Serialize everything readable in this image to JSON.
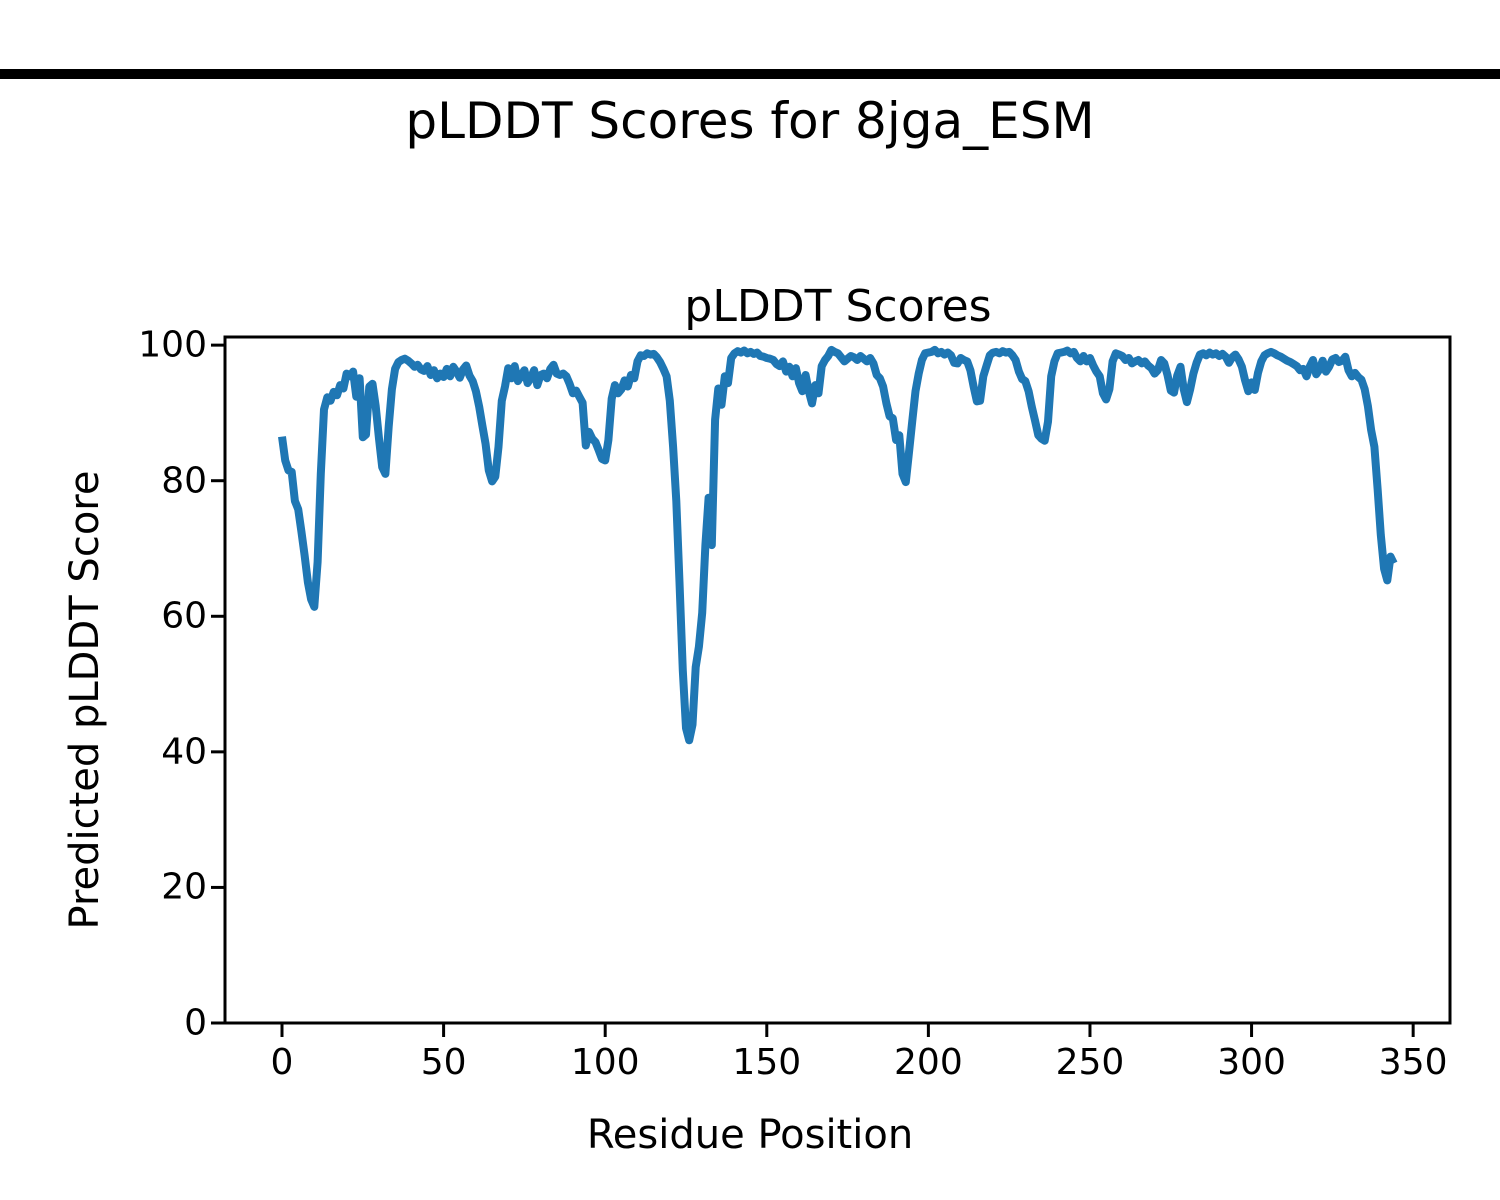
{
  "figure": {
    "suptitle": "pLDDT Scores for 8jga_ESM",
    "background_color": "#ffffff",
    "top_rule_color": "#000000"
  },
  "chart_data": {
    "type": "line",
    "title": "pLDDT Scores",
    "suptitle": "pLDDT Scores for 8jga_ESM",
    "xlabel": "Residue Position",
    "ylabel": "Predicted pLDDT Score",
    "xticks": [
      0,
      50,
      100,
      150,
      200,
      250,
      300,
      350
    ],
    "yticks": [
      0,
      20,
      40,
      60,
      80,
      100
    ],
    "xlim": [
      -17.64,
      361.4
    ],
    "ylim": [
      0,
      101.2
    ],
    "grid": false,
    "legend": "none",
    "line_color": "#1f77b4",
    "axis_color": "#000000",
    "series": [
      {
        "name": "pLDDT",
        "x_description": "residue index, 0 to 344 step 1",
        "x_start": 0,
        "x_step": 1,
        "n_points": 345,
        "values": [
          86.5,
          83.0,
          81.5,
          81.3,
          77.0,
          75.8,
          72.5,
          69.0,
          65.0,
          62.5,
          61.4,
          68.0,
          81.0,
          90.5,
          92.3,
          91.8,
          93.1,
          92.6,
          94.1,
          93.6,
          95.8,
          95.4,
          96.1,
          92.4,
          95.1,
          86.4,
          86.8,
          93.9,
          94.3,
          91.0,
          86.2,
          82.0,
          81.0,
          88.0,
          93.5,
          96.5,
          97.5,
          97.8,
          98.0,
          97.7,
          97.3,
          96.8,
          97.1,
          96.4,
          96.2,
          96.9,
          95.6,
          96.3,
          95.1,
          95.8,
          95.3,
          96.5,
          95.4,
          96.8,
          96.1,
          95.2,
          96.4,
          97.0,
          95.5,
          94.7,
          93.2,
          90.9,
          88.1,
          85.4,
          81.5,
          79.9,
          80.6,
          85.0,
          91.8,
          93.9,
          96.6,
          95.1,
          96.9,
          94.7,
          95.5,
          96.3,
          94.4,
          95.2,
          96.3,
          94.1,
          95.6,
          95.8,
          95.1,
          96.5,
          97.1,
          95.8,
          95.6,
          95.8,
          95.4,
          94.3,
          92.9,
          93.3,
          92.4,
          91.5,
          85.2,
          87.2,
          86.2,
          85.7,
          84.5,
          83.2,
          83.0,
          86.0,
          92.1,
          94.1,
          92.9,
          93.5,
          94.8,
          93.9,
          95.6,
          95.1,
          97.6,
          98.5,
          98.4,
          98.8,
          98.6,
          98.7,
          98.2,
          97.5,
          96.5,
          95.4,
          91.8,
          85.0,
          77.0,
          65.0,
          52.0,
          43.5,
          41.7,
          44.0,
          52.5,
          55.5,
          60.5,
          70.5,
          77.5,
          70.5,
          89.0,
          93.6,
          91.2,
          95.4,
          94.4,
          98.1,
          98.8,
          99.1,
          98.9,
          99.2,
          98.8,
          99.0,
          98.7,
          98.9,
          98.4,
          98.3,
          98.1,
          98.0,
          97.8,
          97.2,
          96.9,
          97.6,
          96.1,
          96.8,
          95.4,
          96.6,
          94.4,
          93.2,
          95.6,
          93.2,
          91.4,
          94.1,
          92.9,
          96.9,
          97.8,
          98.4,
          99.3,
          99.0,
          98.8,
          98.2,
          97.6,
          98.0,
          98.4,
          98.2,
          97.8,
          98.4,
          98.0,
          97.6,
          98.1,
          97.3,
          95.6,
          95.1,
          93.9,
          91.4,
          89.5,
          89.2,
          86.0,
          86.7,
          81.0,
          79.8,
          84.2,
          88.7,
          93.2,
          95.8,
          97.8,
          98.8,
          98.9,
          99.0,
          99.3,
          98.8,
          99.0,
          98.6,
          98.9,
          98.5,
          97.4,
          97.3,
          98.1,
          97.8,
          97.6,
          96.3,
          93.9,
          91.7,
          91.8,
          95.4,
          97.0,
          98.5,
          98.9,
          99.0,
          98.8,
          99.1,
          98.9,
          99.0,
          98.5,
          97.8,
          96.1,
          95.0,
          94.7,
          93.2,
          90.9,
          88.9,
          86.7,
          86.2,
          85.9,
          88.7,
          95.4,
          97.6,
          98.8,
          98.9,
          99.0,
          99.2,
          98.8,
          99.0,
          98.1,
          97.6,
          98.4,
          97.6,
          98.1,
          97.0,
          96.1,
          95.4,
          92.9,
          92.0,
          93.5,
          97.6,
          98.8,
          98.6,
          98.4,
          97.8,
          98.1,
          97.3,
          97.6,
          97.8,
          97.3,
          97.6,
          97.0,
          96.6,
          95.8,
          96.3,
          97.8,
          97.3,
          95.6,
          93.3,
          93.0,
          95.5,
          96.8,
          93.5,
          91.6,
          93.5,
          95.8,
          97.4,
          98.6,
          98.8,
          98.5,
          98.9,
          98.6,
          98.8,
          98.4,
          98.7,
          98.3,
          97.4,
          98.2,
          98.6,
          97.9,
          96.8,
          94.8,
          93.2,
          94.5,
          93.4,
          95.9,
          97.6,
          98.5,
          98.8,
          99.0,
          98.8,
          98.5,
          98.3,
          98.0,
          97.7,
          97.5,
          97.2,
          96.9,
          96.3,
          96.5,
          95.4,
          96.8,
          97.8,
          95.7,
          96.4,
          97.7,
          96.1,
          96.8,
          97.9,
          98.1,
          97.5,
          97.7,
          98.3,
          96.3,
          95.4,
          95.9,
          95.3,
          94.9,
          93.5,
          91.0,
          87.5,
          85.0,
          78.8,
          72.0,
          67.0,
          65.3,
          68.8,
          67.8
        ]
      }
    ]
  }
}
